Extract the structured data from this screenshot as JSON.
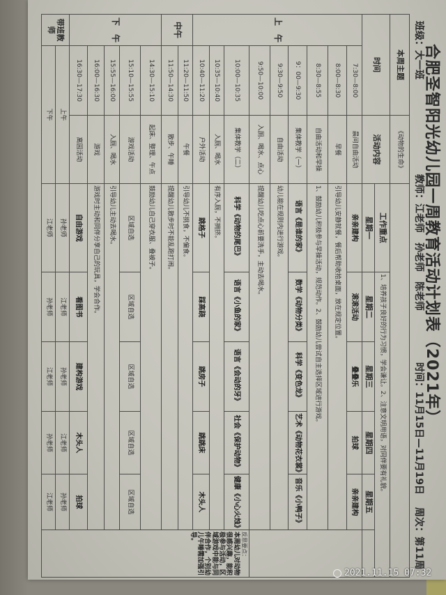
{
  "title": "合肥圣智阳光幼儿园一周教育活动计划表（2021年）",
  "class_label": "班级：大一班",
  "teachers_label": "教师：江老师　孙老师　陈老师",
  "date_range": "时间：11月15日—11月19日",
  "week_label": "周次：第11周",
  "theme_label": "本周主题",
  "theme": "《动物的生命》",
  "focus_label": "工作重点",
  "focus_text": "1、培养孩子良好的行为习惯，学会谦让。2、注意文明用语，对同伴要有礼貌。",
  "header": {
    "time": "时间",
    "activity": "活动内容",
    "days": [
      "星期一",
      "星期二",
      "星期三",
      "星期四",
      "星期五"
    ]
  },
  "sections": {
    "morning": "上　午",
    "noon": "中午",
    "afternoon": "下　午",
    "teacher": "带班教师"
  },
  "rows": [
    {
      "time": "7:30—8:00",
      "activity": "晨间自由活动",
      "days": [
        "亲亲建构",
        "滚滚活动",
        "叠叠乐",
        "拍球",
        "亲亲建构"
      ],
      "hand": true
    },
    {
      "time": "8:00—8:30",
      "activity": "早餐",
      "span": "引导幼儿安静就餐，餐后帮助收拾桌面，放在规定位置。"
    },
    {
      "time": "8:30—8:55",
      "activity": "自由活动和早操",
      "span": "1、鼓励幼儿积极参与早操活动，规范动作。2、鼓励幼儿尝试自主选择区域进行游戏。"
    },
    {
      "time": "9：00—9:30",
      "activity": "集体教学（一）",
      "days": [
        "语言《是谁的家》",
        "数学《动物分类》",
        "科学《变色龙》",
        "艺术《动物花衣裳》",
        "音乐《小鸭子》"
      ],
      "hand": true
    },
    {
      "time": "9:30—9:50",
      "activity": "自由活动",
      "span": "幼儿能在规则内进行游戏。"
    },
    {
      "time": "9:50—10:00",
      "activity": "入厕、喝水、点心",
      "span": "提醒幼儿吃点心前要洗手，主动去喝水。"
    },
    {
      "time": "10:00—10:35",
      "activity": "集体教学（二）",
      "days": [
        "科学《动物的尾巴》",
        "语言《小鱼的家》",
        "语言《会动的牙》",
        "社会《保护动物》",
        "健康《小心火烛》"
      ],
      "hand": true
    },
    {
      "time": "10:35—10:40",
      "activity": "入厕、喝水",
      "span": "有序入厕，不拥挤。"
    },
    {
      "time": "10:40—11:20",
      "activity": "户外活动",
      "days": [
        "跳格子",
        "踩高跷",
        "跳房子",
        "跳跳床",
        "木头人"
      ],
      "hand": true
    },
    {
      "time": "11:20—11:50",
      "activity": "午餐",
      "span": "引导幼儿不挑食，不偏食。"
    },
    {
      "time": "11:50—14:30",
      "activity": "散步、午睡",
      "span": "提醒幼儿散步时不能乱跑打闹。"
    },
    {
      "time": "14:30—15:10",
      "activity": "起床、整理、午点",
      "span": "鼓励幼儿自己穿衣服、叠被子。"
    },
    {
      "time": "15:10—15:55",
      "activity": "游戏活动",
      "days": [
        "区域自选",
        "区域自选",
        "区域自选",
        "区域自选",
        "区域自选"
      ]
    },
    {
      "time": "15:55—16:00",
      "activity": "入厕、喝水",
      "span": "引导幼儿主动去喝水。"
    },
    {
      "time": "16:00—16:30",
      "activity": "游戏",
      "span": "游戏时主动和同伴分享自己的玩具，学会合作。"
    },
    {
      "time": "16:30—17:30",
      "activity": "离园活动",
      "days": [
        "自由游戏",
        "看图书",
        "建构游戏",
        "木头人",
        "拍球"
      ],
      "hand": true
    },
    {
      "time": "上午",
      "days": [
        "孙老师",
        "江老师",
        "孙老师",
        "江老师",
        "孙老师"
      ]
    },
    {
      "time": "下午",
      "days": [
        "江老师",
        "孙老师",
        "江老师",
        "孙老师",
        "江老师"
      ]
    }
  ],
  "reflection_label": "反思要点：",
  "reflection_text": "本周幼儿对动物很感兴趣，能积极参与活动，区域游戏中能与同伴合作，个别幼儿午睡需加强引导。",
  "camera_timestamp": "2021.11.15 07:32"
}
